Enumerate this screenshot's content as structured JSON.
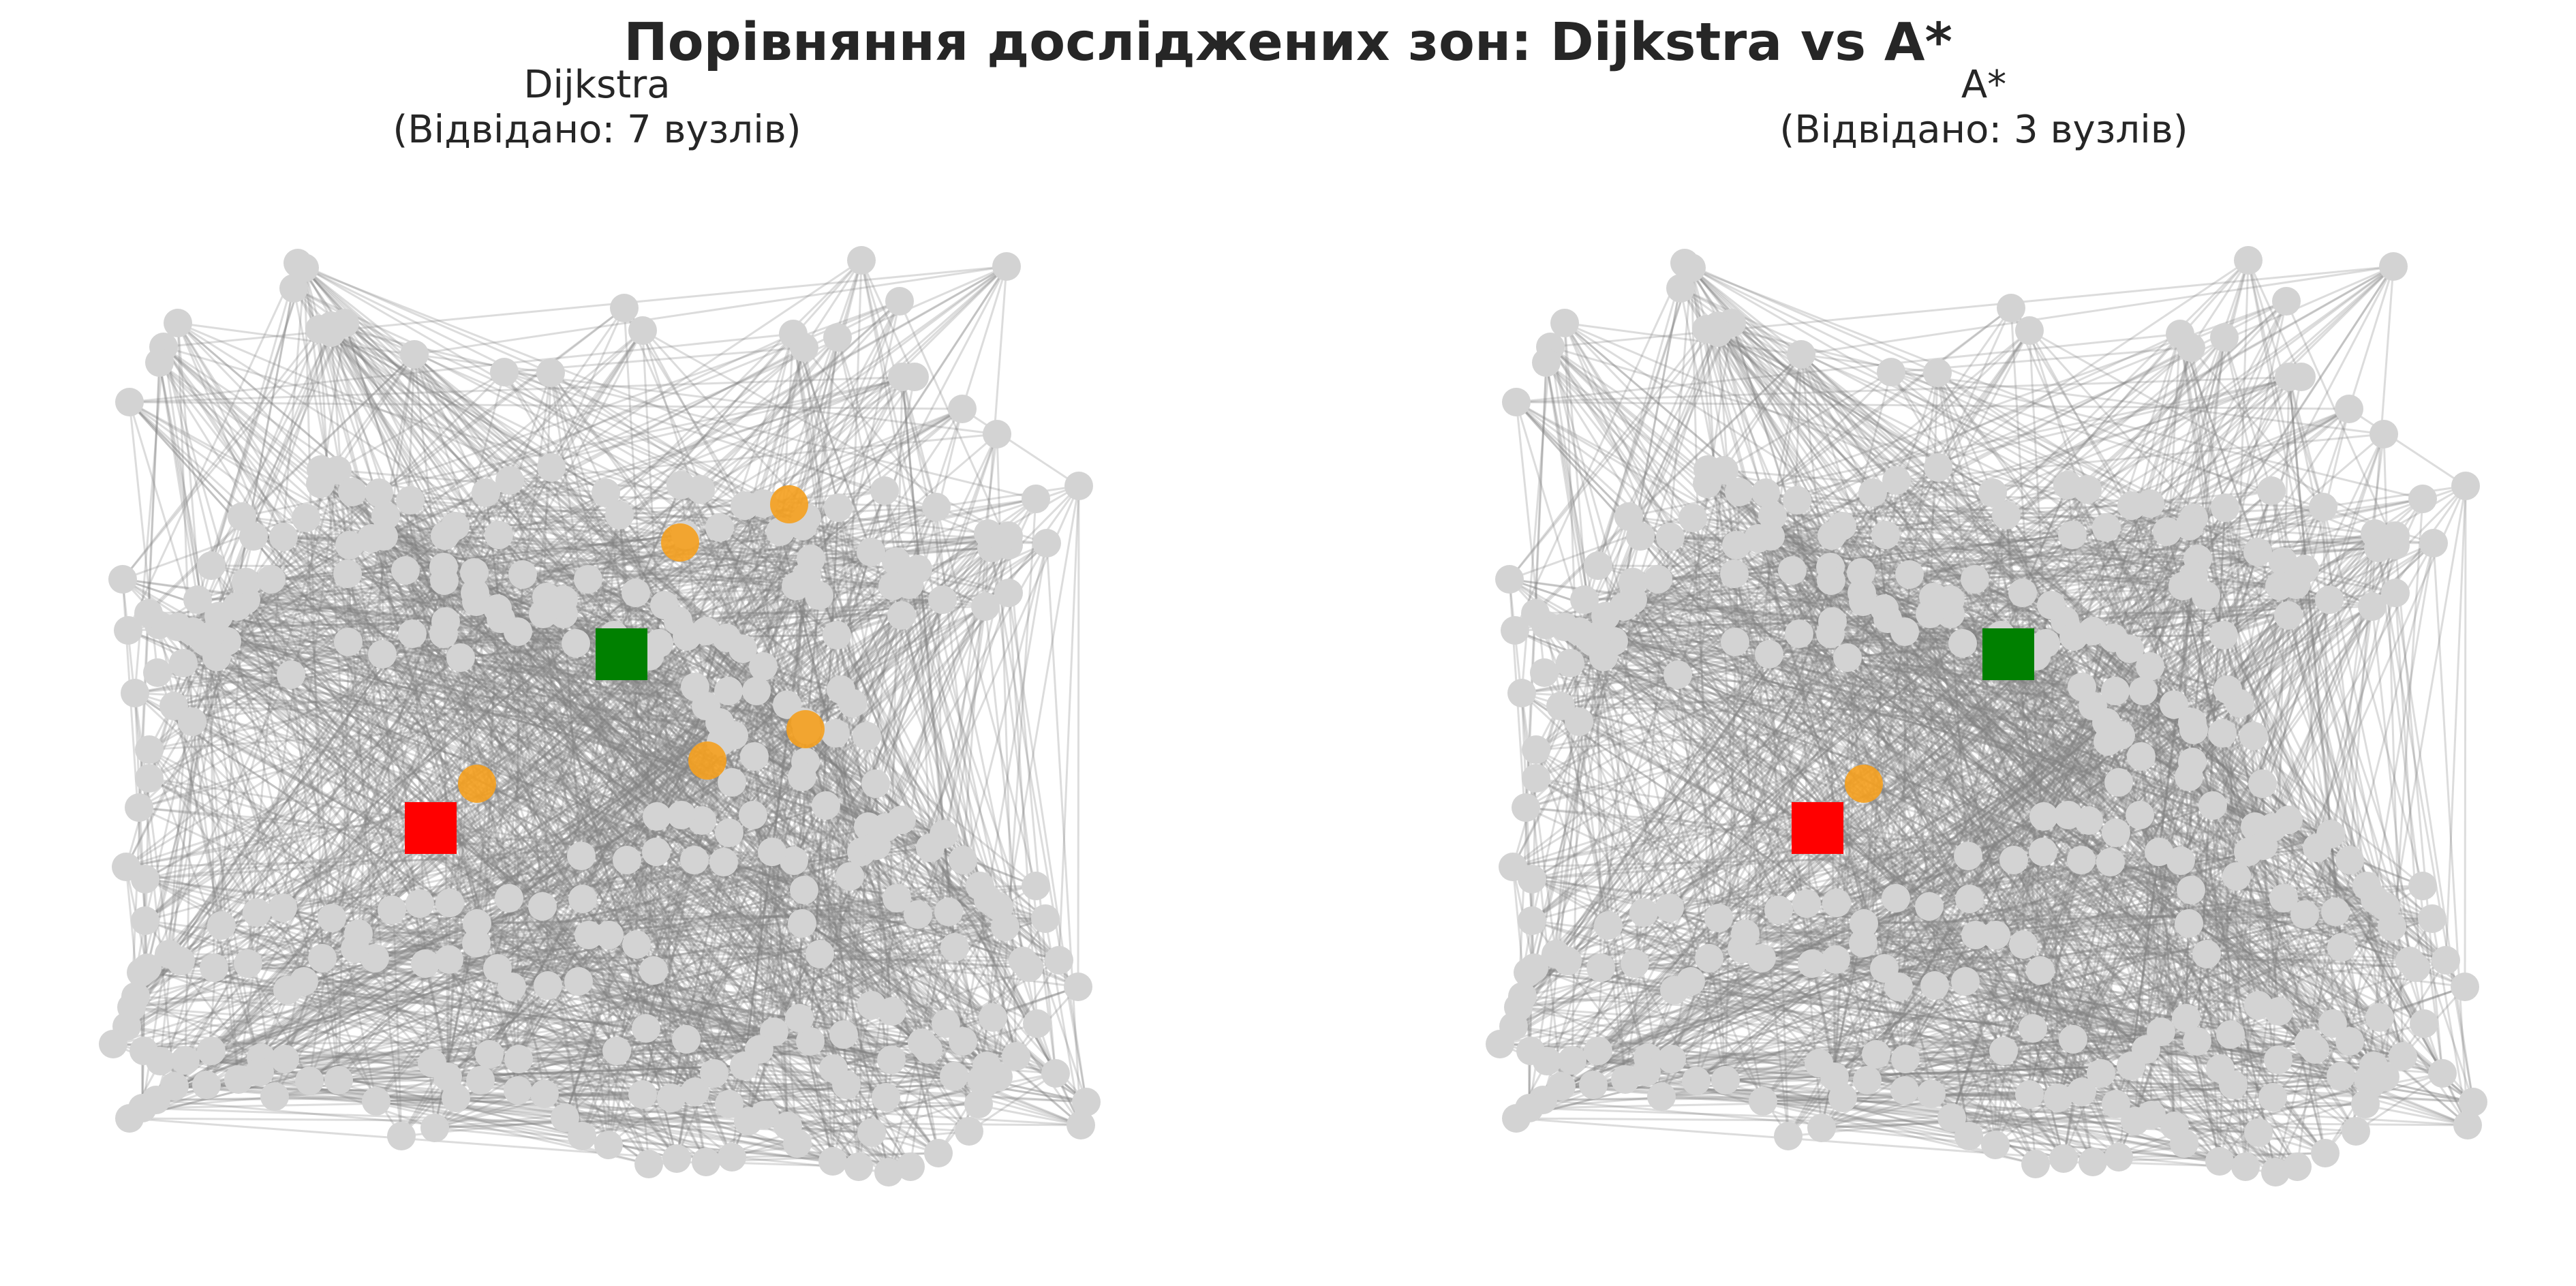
{
  "figure": {
    "title": "Порівняння досліджених зон: Dijkstra vs A*"
  },
  "colors": {
    "node": "#d3d3d3",
    "edge": "#808080",
    "visited": "#f5a01e",
    "start": "#008000",
    "goal": "#ff0000",
    "text": "#262626"
  },
  "panels": [
    {
      "algorithm": "Dijkstra",
      "subtitle": "(Відвідано: 7 вузлів)",
      "visited_count": 7
    },
    {
      "algorithm": "A*",
      "subtitle": "(Відвідано: 3 вузлів)",
      "visited_count": 3
    }
  ],
  "legend_markers": {
    "start_shape": "square",
    "goal_shape": "square",
    "visited_shape": "circle",
    "node_shape": "circle"
  }
}
